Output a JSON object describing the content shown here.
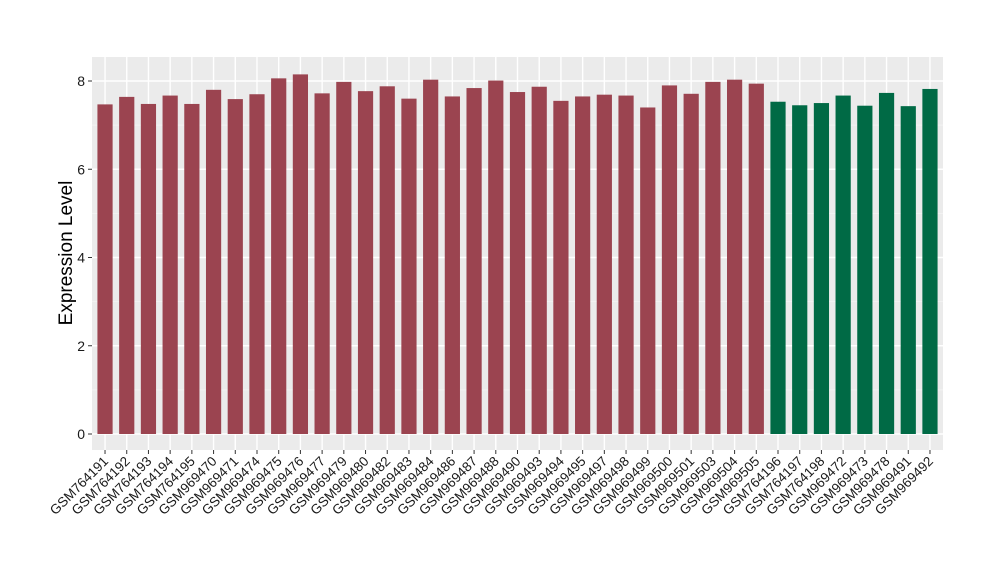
{
  "chart_data": {
    "type": "bar",
    "title": "",
    "xlabel": "",
    "ylabel": "Expression Level",
    "ylim": [
      0,
      8.4
    ],
    "yticks": [
      0,
      2,
      4,
      6,
      8
    ],
    "grid": true,
    "legend": "none",
    "categories": [
      "GSM764191",
      "GSM764192",
      "GSM764193",
      "GSM764194",
      "GSM764195",
      "GSM969470",
      "GSM969471",
      "GSM969474",
      "GSM969475",
      "GSM969476",
      "GSM969477",
      "GSM969479",
      "GSM969480",
      "GSM969482",
      "GSM969483",
      "GSM969484",
      "GSM969486",
      "GSM969487",
      "GSM969488",
      "GSM969490",
      "GSM969493",
      "GSM969494",
      "GSM969495",
      "GSM969497",
      "GSM969498",
      "GSM969499",
      "GSM969500",
      "GSM969501",
      "GSM969503",
      "GSM969504",
      "GSM969505",
      "GSM764196",
      "GSM764197",
      "GSM764198",
      "GSM969472",
      "GSM969473",
      "GSM969478",
      "GSM969491",
      "GSM969492"
    ],
    "values": [
      7.47,
      7.64,
      7.48,
      7.67,
      7.48,
      7.8,
      7.59,
      7.7,
      8.06,
      8.15,
      7.72,
      7.98,
      7.77,
      7.88,
      7.6,
      8.03,
      7.65,
      7.84,
      8.01,
      7.75,
      7.87,
      7.55,
      7.65,
      7.69,
      7.67,
      7.4,
      7.9,
      7.71,
      7.98,
      8.03,
      7.94,
      7.53,
      7.45,
      7.5,
      7.67,
      7.44,
      7.73,
      7.43,
      7.82
    ],
    "groups": [
      "A",
      "A",
      "A",
      "A",
      "A",
      "A",
      "A",
      "A",
      "A",
      "A",
      "A",
      "A",
      "A",
      "A",
      "A",
      "A",
      "A",
      "A",
      "A",
      "A",
      "A",
      "A",
      "A",
      "A",
      "A",
      "A",
      "A",
      "A",
      "A",
      "A",
      "A",
      "B",
      "B",
      "B",
      "B",
      "B",
      "B",
      "B",
      "B"
    ],
    "colors": {
      "A": "#9b4450",
      "B": "#006a45",
      "panel": "#ebebeb",
      "grid_major": "#ffffff",
      "axis_text": "#1a1a1a"
    }
  }
}
